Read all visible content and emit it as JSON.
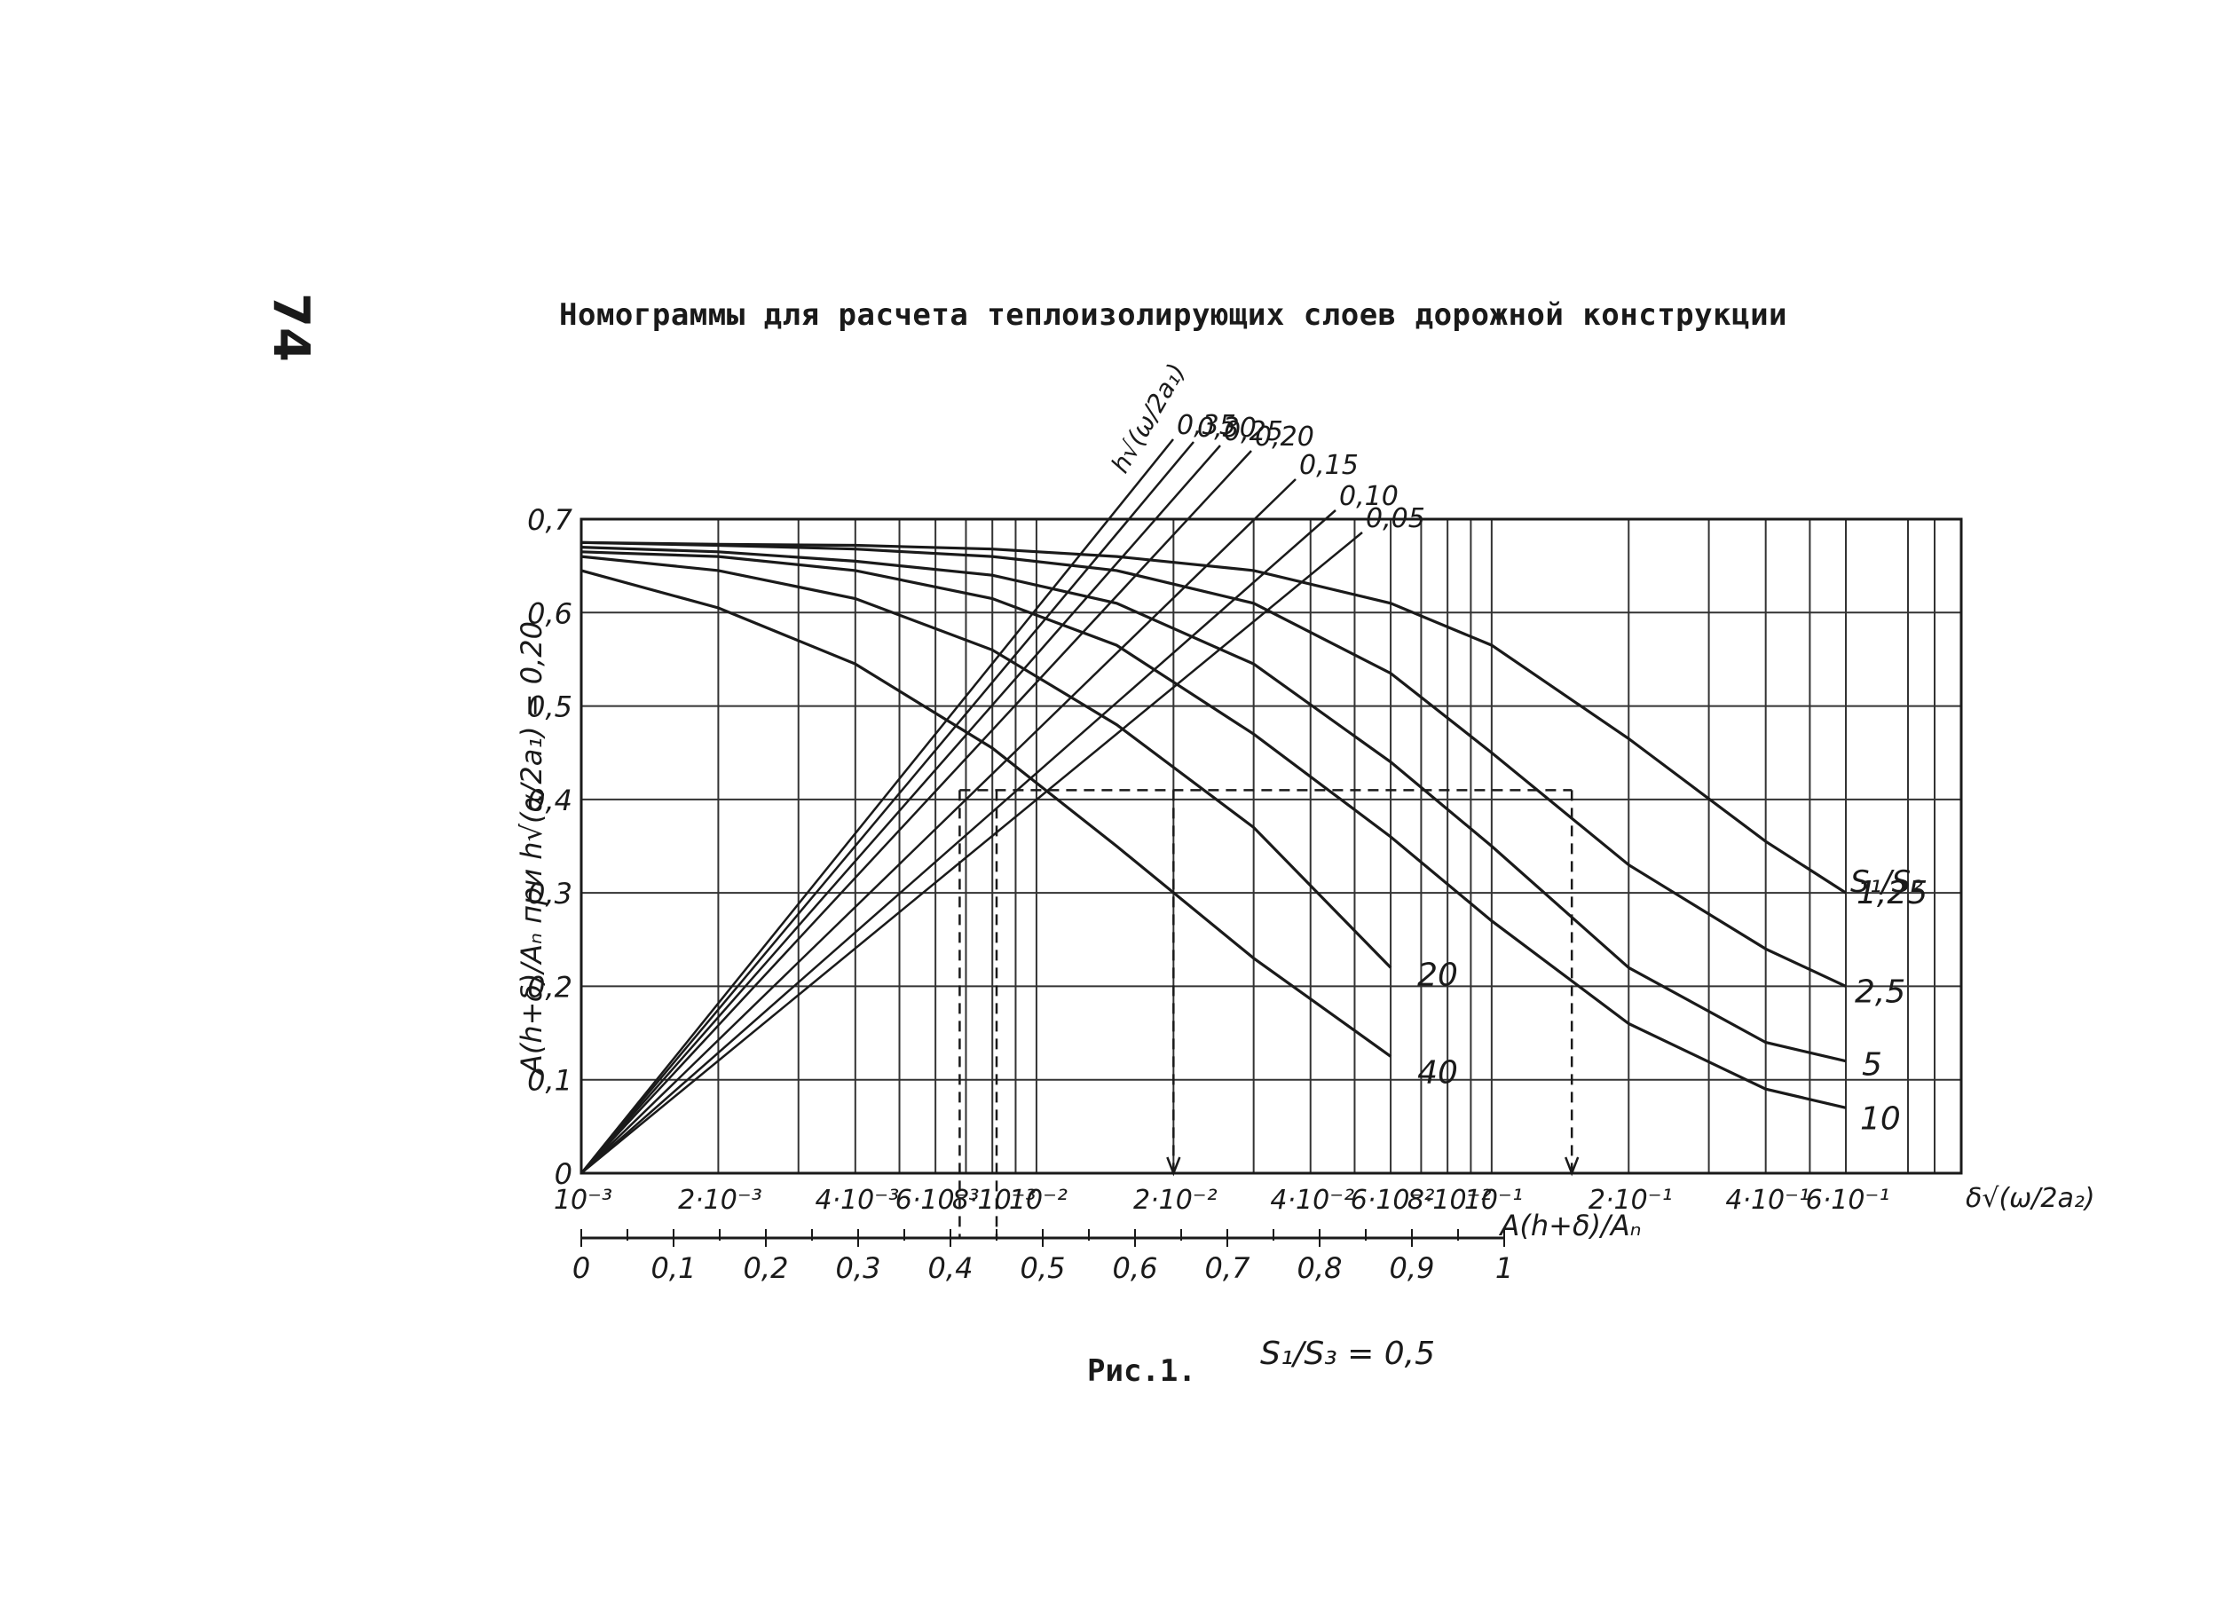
{
  "page": {
    "page_number": "74",
    "title": "Номограммы для расчета теплоизолирующих слоев дорожной конструкции",
    "caption": "Рис.1.",
    "caption_ratio": "S₁/S₃ = 0,5"
  },
  "chart_data": {
    "type": "line",
    "title": "Номограммы для расчета теплоизолирующих слоев дорожной конструкции",
    "ylabel": "A(h+δ)/Aₙ при h√(α/2a₁) = 0,20",
    "ylim": [
      0,
      0.7
    ],
    "y_ticks": [
      "0",
      "0,1",
      "0,2",
      "0,3",
      "0,4",
      "0,5",
      "0,6",
      "0,7"
    ],
    "x_top_label": "δ√(ω/2a₂)",
    "x_top_scale": "log",
    "x_top_range": [
      0.001,
      0.6
    ],
    "x_top_ticks": [
      "10⁻³",
      "2·10⁻³",
      "4·10⁻³",
      "6·10⁻³",
      "8·10⁻³",
      "10⁻²",
      "2·10⁻²",
      "4·10⁻²",
      "6·10⁻²",
      "8·10⁻²",
      "10⁻¹",
      "2·10⁻¹",
      "4·10⁻¹",
      "6·10⁻¹"
    ],
    "x_bottom_label": "A(h+δ)/Aₙ",
    "x_bottom_range": [
      0,
      1
    ],
    "x_bottom_ticks": [
      "0",
      "0,1",
      "0,2",
      "0,3",
      "0,4",
      "0,5",
      "0,6",
      "0,7",
      "0,8",
      "0,9",
      "1"
    ],
    "grid": true,
    "ratio_label": "S₁/S₂",
    "curve_family_label": "h√(ω/2a₁)",
    "curves": [
      {
        "name": "1,25",
        "x": [
          0.001,
          0.002,
          0.004,
          0.008,
          0.015,
          0.03,
          0.06,
          0.1,
          0.2,
          0.4,
          0.6
        ],
        "y": [
          0.675,
          0.673,
          0.672,
          0.668,
          0.66,
          0.645,
          0.61,
          0.565,
          0.465,
          0.355,
          0.3
        ]
      },
      {
        "name": "2,5",
        "x": [
          0.001,
          0.002,
          0.004,
          0.008,
          0.015,
          0.03,
          0.06,
          0.1,
          0.2,
          0.4,
          0.6
        ],
        "y": [
          0.675,
          0.672,
          0.668,
          0.66,
          0.645,
          0.61,
          0.535,
          0.45,
          0.33,
          0.24,
          0.2
        ]
      },
      {
        "name": "5",
        "x": [
          0.001,
          0.002,
          0.004,
          0.008,
          0.015,
          0.03,
          0.06,
          0.1,
          0.2,
          0.4,
          0.6
        ],
        "y": [
          0.67,
          0.665,
          0.655,
          0.64,
          0.61,
          0.545,
          0.44,
          0.35,
          0.22,
          0.14,
          0.12
        ]
      },
      {
        "name": "10",
        "x": [
          0.001,
          0.002,
          0.004,
          0.008,
          0.015,
          0.03,
          0.06,
          0.1,
          0.2,
          0.4,
          0.6
        ],
        "y": [
          0.665,
          0.66,
          0.645,
          0.615,
          0.565,
          0.47,
          0.36,
          0.27,
          0.16,
          0.09,
          0.07
        ]
      },
      {
        "name": "20",
        "x": [
          0.001,
          0.002,
          0.004,
          0.008,
          0.015,
          0.03,
          0.06
        ],
        "y": [
          0.66,
          0.645,
          0.615,
          0.56,
          0.48,
          0.37,
          0.22
        ]
      },
      {
        "name": "40",
        "x": [
          0.001,
          0.002,
          0.004,
          0.008,
          0.015,
          0.03,
          0.06
        ],
        "y": [
          0.645,
          0.605,
          0.545,
          0.455,
          0.35,
          0.23,
          0.125
        ]
      }
    ],
    "family_lines": [
      {
        "name": "0,35",
        "x_bottom": [
          0,
          0.58
        ],
        "y": [
          0,
          0.7
        ]
      },
      {
        "name": "0,30",
        "x_bottom": [
          0,
          0.6
        ],
        "y": [
          0,
          0.7
        ]
      },
      {
        "name": "0,25",
        "x_bottom": [
          0,
          0.63
        ],
        "y": [
          0,
          0.7
        ]
      },
      {
        "name": "0,20",
        "x_bottom": [
          0,
          0.66
        ],
        "y": [
          0,
          0.7
        ]
      },
      {
        "name": "0,15",
        "x_bottom": [
          0,
          0.7
        ],
        "y": [
          0,
          0.7
        ]
      },
      {
        "name": "0,10",
        "x_bottom": [
          0,
          0.74
        ],
        "y": [
          0,
          0.7
        ]
      },
      {
        "name": "0,05",
        "x_bottom": [
          0,
          0.77
        ],
        "y": [
          0,
          0.7
        ]
      }
    ],
    "example_y": 0.41,
    "example_x_bottom": [
      0.41,
      0.45
    ],
    "example_x_top": [
      0.02,
      0.15
    ]
  },
  "colors": {
    "ink": "#1a1a1a",
    "grid": "#333333",
    "background": "#ffffff"
  }
}
